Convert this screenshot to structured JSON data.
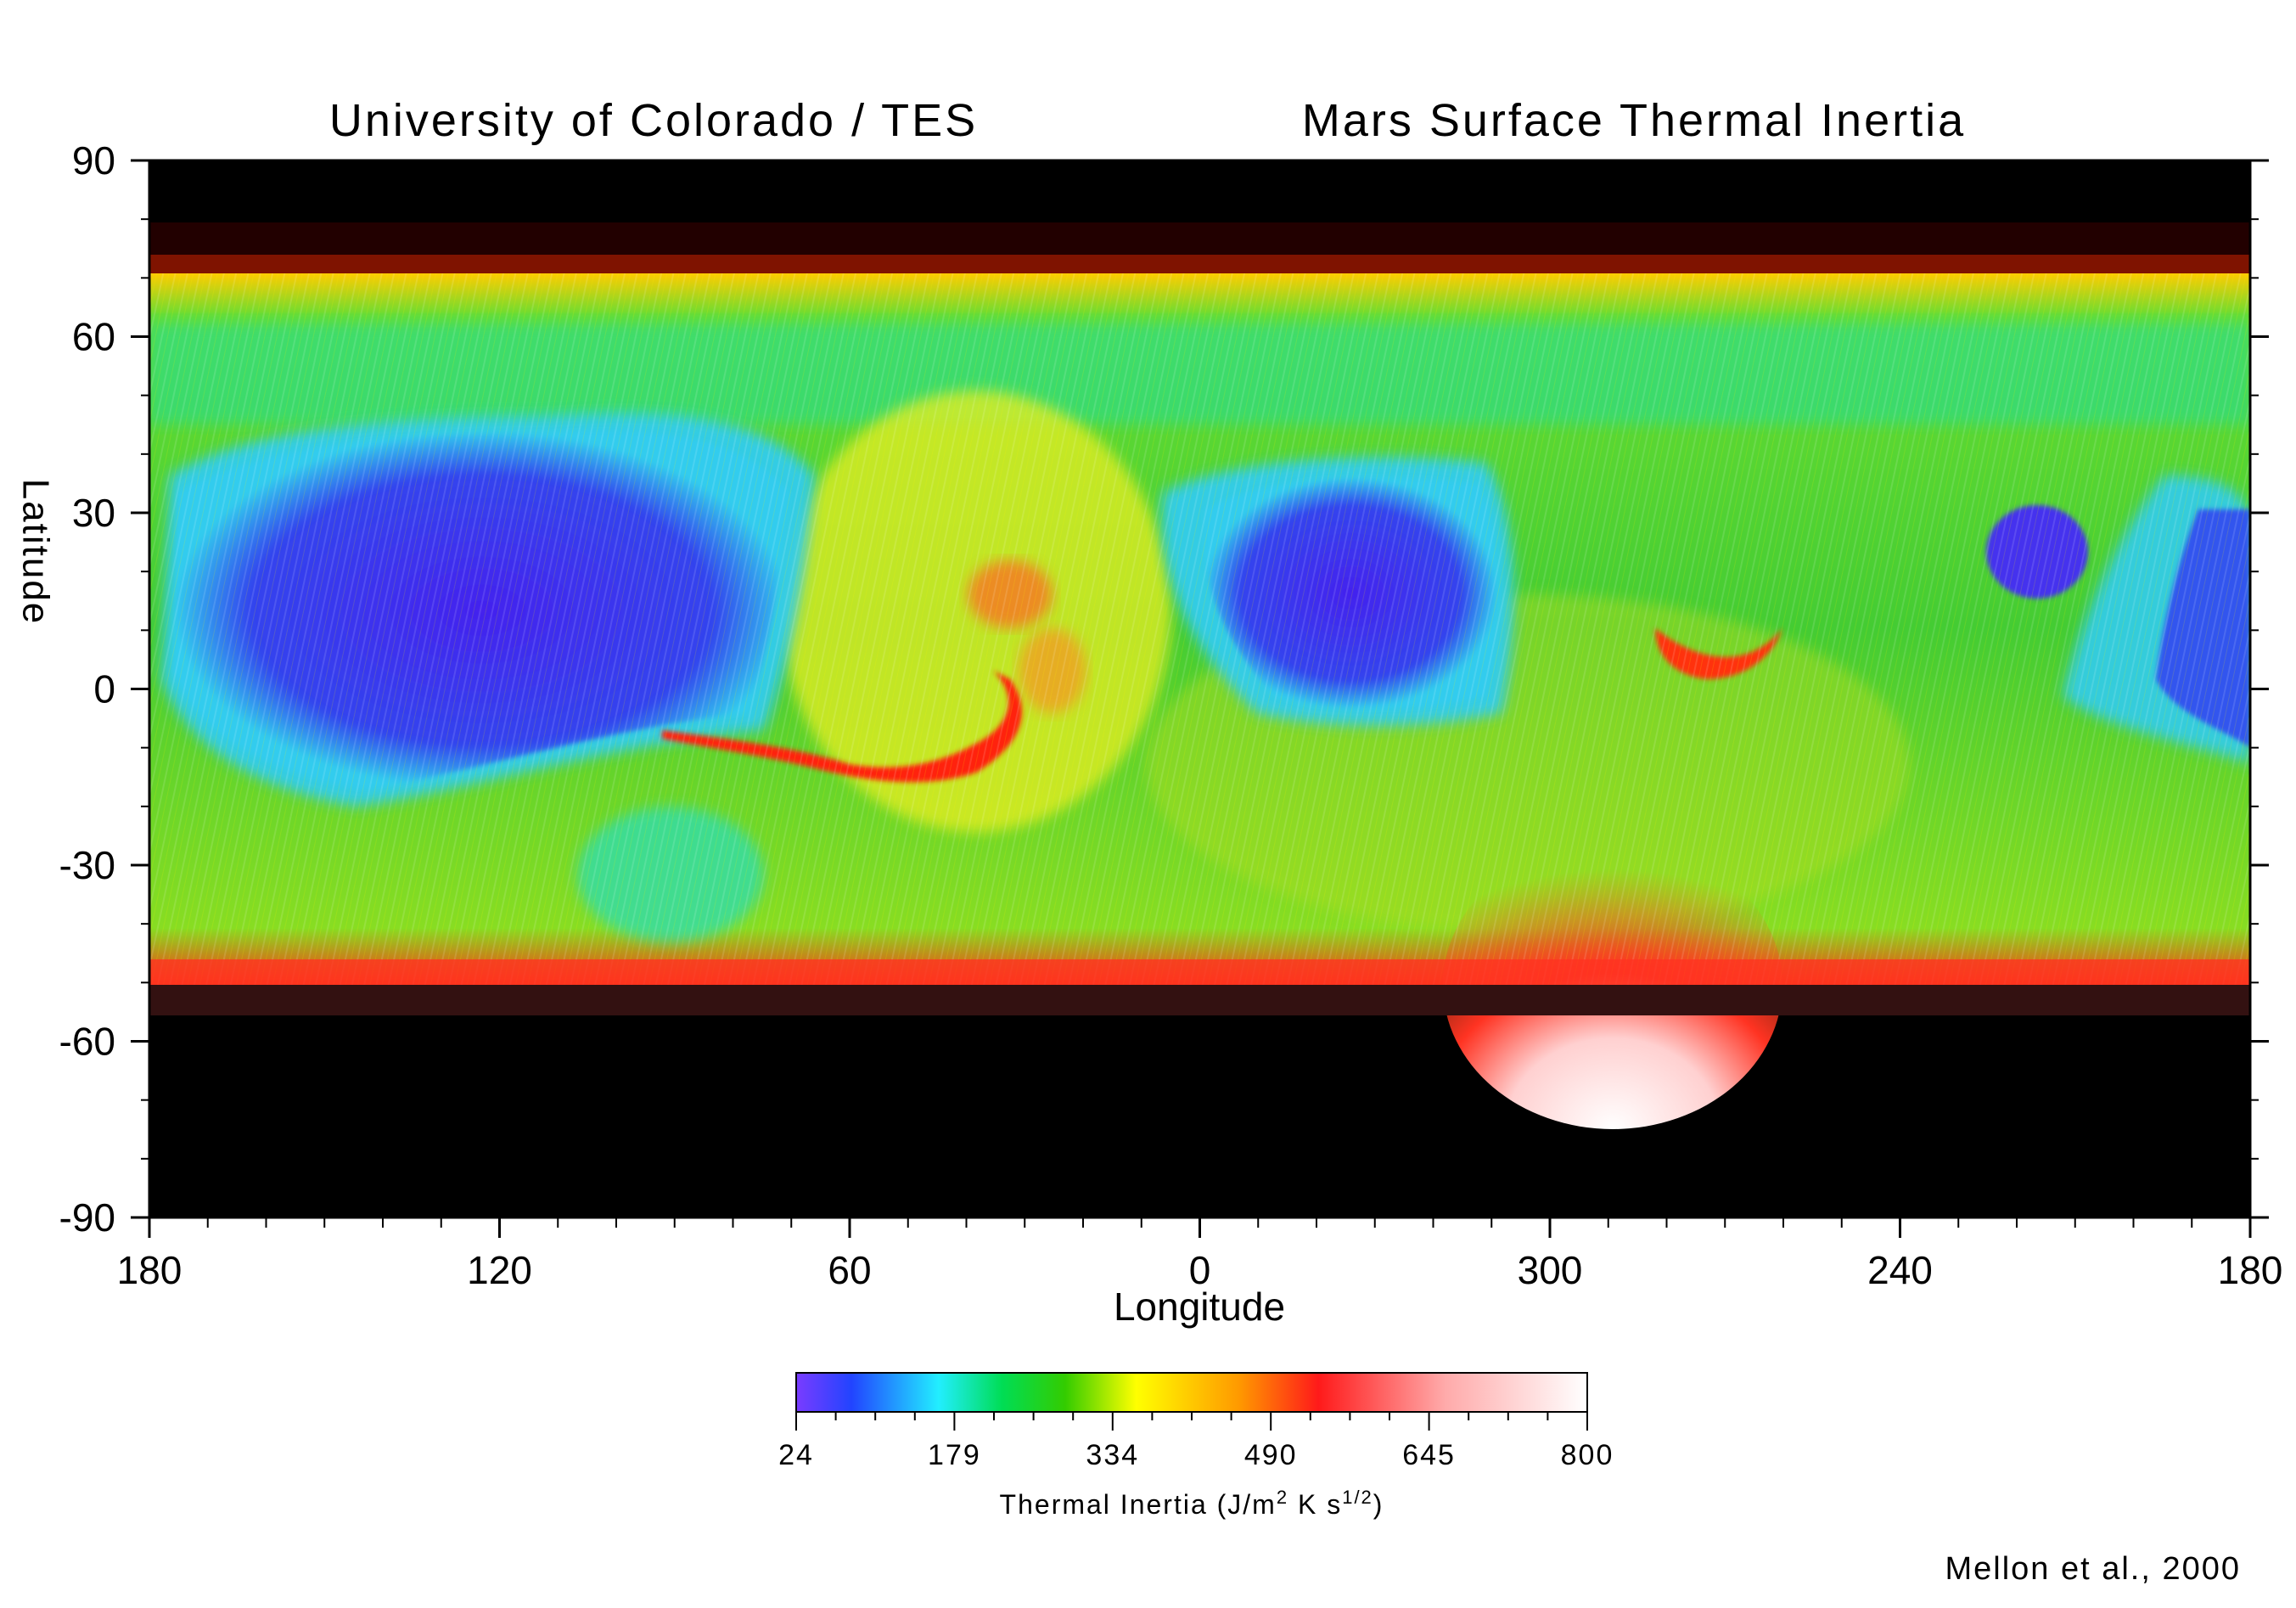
{
  "title": {
    "left": "University of Colorado / TES",
    "right": "Mars Surface Thermal Inertia"
  },
  "axes": {
    "y_label": "Latitude",
    "y_ticks": [
      "90",
      "60",
      "30",
      "0",
      "-30",
      "-60",
      "-90"
    ],
    "x_label": "Longitude",
    "x_ticks": [
      "180",
      "120",
      "60",
      "0",
      "300",
      "240",
      "180"
    ]
  },
  "colorbar": {
    "ticks": [
      "24",
      "179",
      "334",
      "490",
      "645",
      "800"
    ],
    "label_main": "Thermal Inertia (J/m",
    "label_sup1": "2",
    "label_mid": " K s",
    "label_sup2": "1/2",
    "label_end": ")",
    "range": [
      24,
      800
    ],
    "stops": [
      "#7a3cff",
      "#2244ff",
      "#22eeff",
      "#00dd55",
      "#33cc00",
      "#ffff00",
      "#ff9900",
      "#ff1a1a",
      "#ffaaaa",
      "#ffffff"
    ]
  },
  "credit": "Mellon et al., 2000",
  "map_colors": {
    "no_data": "#000000",
    "low_inertia": "#3a3ae8",
    "mid_low": "#33e0e0",
    "mid": "#30c830",
    "mid_high": "#e8f000",
    "high": "#ff2a10",
    "very_high": "#ffe8e8"
  }
}
